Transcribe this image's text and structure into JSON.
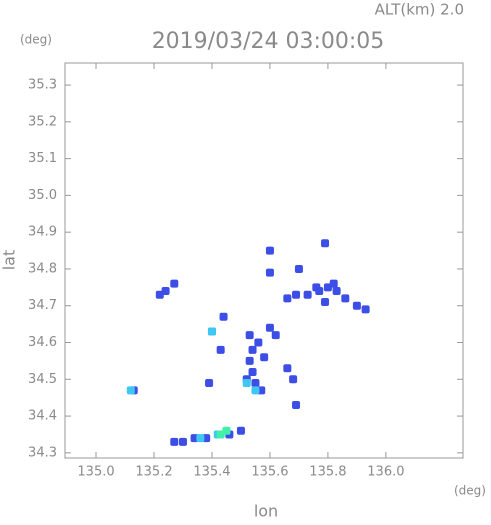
{
  "chart_data": {
    "type": "scatter",
    "title": "2019/03/24 03:00:05",
    "subtitle": "ALT(km) 2.0",
    "y_unit": "(deg)",
    "x_unit": "(deg)",
    "ylabel": "lat",
    "xlabel": "lon",
    "xlim": [
      134.893,
      136.266
    ],
    "ylim": [
      34.286,
      35.36
    ],
    "xticks": [
      {
        "value": 135.0,
        "label": "135.0"
      },
      135.2,
      135.4,
      135.6,
      135.8,
      {
        "value": 136.0,
        "label": "136.0"
      }
    ],
    "yticks": [
      34.3,
      34.4,
      34.5,
      34.6,
      34.7,
      34.8,
      34.9,
      {
        "value": 35.0,
        "label": "35.0"
      },
      35.1,
      35.2,
      35.3
    ],
    "series": [
      {
        "color": "#3c4ee6",
        "x": [
          135.13,
          135.24,
          135.22,
          135.27,
          135.44,
          135.4,
          135.43,
          135.39,
          135.53,
          135.54,
          135.53,
          135.54,
          135.52,
          135.55,
          135.57,
          135.56,
          135.58,
          135.6,
          135.62,
          135.66,
          135.68,
          135.69,
          135.6,
          135.6,
          135.69,
          135.73,
          135.77,
          135.8,
          135.83,
          135.86,
          135.79,
          135.66,
          135.9,
          135.93,
          135.79,
          135.7,
          135.27,
          135.3,
          135.34,
          135.38,
          135.46,
          135.5,
          135.82,
          135.76
        ],
        "y": [
          34.47,
          34.74,
          34.73,
          34.76,
          34.67,
          34.63,
          34.58,
          34.49,
          34.62,
          34.58,
          34.55,
          34.52,
          34.5,
          34.49,
          34.47,
          34.6,
          34.56,
          34.64,
          34.62,
          34.53,
          34.5,
          34.43,
          34.85,
          34.79,
          34.73,
          34.73,
          34.74,
          34.75,
          34.74,
          34.72,
          34.71,
          34.72,
          34.7,
          34.69,
          34.87,
          34.8,
          34.33,
          34.33,
          34.34,
          34.34,
          34.35,
          34.36,
          34.76,
          34.75
        ]
      },
      {
        "color": "#3cc8f0",
        "x": [
          135.12,
          135.4,
          135.52,
          135.55,
          135.42,
          135.36
        ],
        "y": [
          34.47,
          34.63,
          34.49,
          34.47,
          34.35,
          34.34
        ]
      },
      {
        "color": "#40f0a8",
        "x": [
          135.43,
          135.45
        ],
        "y": [
          34.35,
          34.36
        ]
      }
    ]
  }
}
